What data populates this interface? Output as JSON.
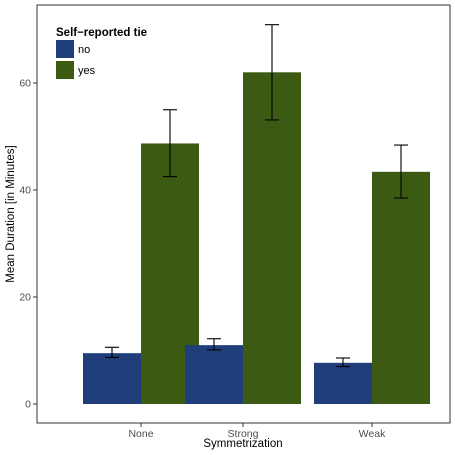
{
  "chart_data": {
    "type": "bar",
    "categories": [
      "None",
      "Strong",
      "Weak"
    ],
    "series": [
      {
        "name": "no",
        "color": "#1f3e7a",
        "values": [
          9.5,
          11.0,
          7.7
        ],
        "error_low": [
          8.7,
          10.1,
          7.0
        ],
        "error_high": [
          10.6,
          12.2,
          8.6
        ]
      },
      {
        "name": "yes",
        "color": "#3d5a12",
        "values": [
          48.7,
          62.0,
          43.4
        ],
        "error_low": [
          42.5,
          53.1,
          38.5
        ],
        "error_high": [
          55.0,
          70.9,
          48.4
        ]
      }
    ],
    "legend": {
      "title": "Self−reported tie",
      "placement": "top-left"
    },
    "xlabel": "Symmetrization",
    "ylabel": "Mean Duration [in Minutes]",
    "yticks": [
      0,
      20,
      40,
      60
    ],
    "ylim": [
      0,
      73.5
    ],
    "grid": false
  }
}
